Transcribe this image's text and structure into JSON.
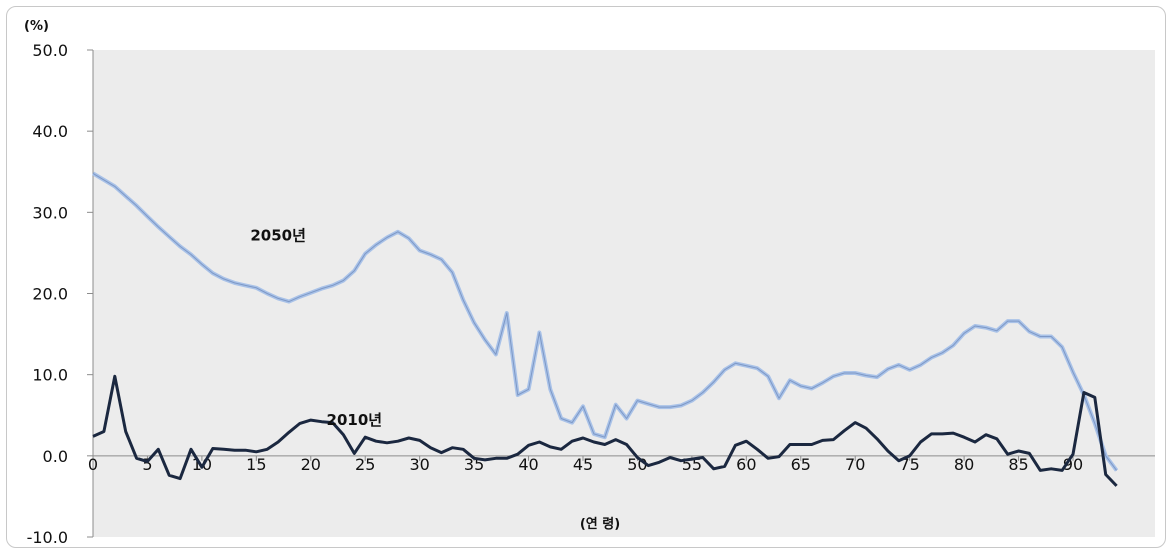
{
  "chart_data": {
    "type": "line",
    "unit_label": "(%)",
    "xlabel": "(연 령)",
    "ylim": [
      -10,
      50
    ],
    "xlim": [
      0,
      95
    ],
    "yticks": [
      50,
      40,
      30,
      20,
      10,
      0,
      -10
    ],
    "ytick_labels": [
      "50.0",
      "40.0",
      "30.0",
      "20.0",
      "10.0",
      "0.0",
      "-10.0"
    ],
    "xticks": [
      0,
      5,
      10,
      15,
      20,
      25,
      30,
      35,
      40,
      45,
      50,
      55,
      60,
      65,
      70,
      75,
      80,
      85,
      90
    ],
    "xtick_labels": [
      "0",
      "5",
      "10",
      "15",
      "20",
      "25",
      "30",
      "35",
      "40",
      "45",
      "50",
      "55",
      "60",
      "65",
      "70",
      "75",
      "80",
      "85",
      "90"
    ],
    "grid": false,
    "plot_background": "#ececec",
    "series": [
      {
        "name": "2050년",
        "color": "#a9c2e8",
        "x": [
          0,
          1,
          2,
          3,
          4,
          5,
          6,
          7,
          8,
          9,
          10,
          11,
          12,
          13,
          14,
          15,
          16,
          17,
          18,
          19,
          20,
          21,
          22,
          23,
          24,
          25,
          26,
          27,
          28,
          29,
          30,
          31,
          32,
          33,
          34,
          35,
          36,
          37,
          38,
          39,
          40,
          41,
          42,
          43,
          44,
          45,
          46,
          47,
          48,
          49,
          50,
          51,
          52,
          53,
          54,
          55,
          56,
          57,
          58,
          59,
          60,
          61,
          62,
          63,
          64,
          65,
          66,
          67,
          68,
          69,
          70,
          71,
          72,
          73,
          74,
          75,
          76,
          77,
          78,
          79,
          80,
          81,
          82,
          83,
          84,
          85,
          86,
          87,
          88,
          89,
          90,
          91,
          92,
          93,
          94
        ],
        "values": [
          34.8,
          34,
          33.2,
          32,
          30.8,
          29.5,
          28.2,
          27,
          25.8,
          24.8,
          23.6,
          22.5,
          21.8,
          21.3,
          21,
          20.7,
          20,
          19.4,
          19,
          19.6,
          20.1,
          20.6,
          21,
          21.6,
          22.8,
          24.9,
          26,
          26.9,
          27.6,
          26.8,
          25.3,
          24.8,
          24.2,
          22.6,
          19.2,
          16.4,
          14.3,
          12.5,
          17.6,
          7.5,
          8.2,
          15.2,
          8.2,
          4.6,
          4.1,
          6.1,
          2.7,
          2.3,
          6.3,
          4.6,
          6.8,
          6.4,
          6,
          6,
          6.2,
          6.8,
          7.8,
          9.1,
          10.6,
          11.4,
          11.1,
          10.8,
          9.8,
          7.1,
          9.3,
          8.6,
          8.3,
          9,
          9.8,
          10.2,
          10.2,
          9.9,
          9.7,
          10.7,
          11.2,
          10.6,
          11.2,
          12.1,
          12.7,
          13.6,
          15.1,
          16,
          15.8,
          15.4,
          16.6,
          16.6,
          15.3,
          14.7,
          14.7,
          13.4,
          10.3,
          7.5,
          4,
          0,
          -1.8
        ]
      },
      {
        "name": "2010년",
        "color": "#1b2840",
        "x": [
          0,
          1,
          2,
          3,
          4,
          5,
          6,
          7,
          8,
          9,
          10,
          11,
          12,
          13,
          14,
          15,
          16,
          17,
          18,
          19,
          20,
          21,
          22,
          23,
          24,
          25,
          26,
          27,
          28,
          29,
          30,
          31,
          32,
          33,
          34,
          35,
          36,
          37,
          38,
          39,
          40,
          41,
          42,
          43,
          44,
          45,
          46,
          47,
          48,
          49,
          50,
          51,
          52,
          53,
          54,
          55,
          56,
          57,
          58,
          59,
          60,
          61,
          62,
          63,
          64,
          65,
          66,
          67,
          68,
          69,
          70,
          71,
          72,
          73,
          74,
          75,
          76,
          77,
          78,
          79,
          80,
          81,
          82,
          83,
          84,
          85,
          86,
          87,
          88,
          89,
          90,
          91,
          92,
          93,
          94
        ],
        "values": [
          2.4,
          3,
          9.8,
          3,
          -0.3,
          -0.7,
          0.8,
          -2.4,
          -2.8,
          0.8,
          -1.4,
          0.9,
          0.8,
          0.7,
          0.7,
          0.5,
          0.8,
          1.7,
          2.9,
          4,
          4.4,
          4.2,
          4.1,
          2.6,
          0.3,
          2.3,
          1.8,
          1.6,
          1.8,
          2.2,
          1.9,
          1,
          0.4,
          1,
          0.8,
          -0.3,
          -0.5,
          -0.3,
          -0.3,
          0.2,
          1.3,
          1.7,
          1.1,
          0.8,
          1.8,
          2.2,
          1.7,
          1.4,
          2,
          1.4,
          -0.2,
          -1.2,
          -0.8,
          -0.2,
          -0.6,
          -0.4,
          -0.2,
          -1.6,
          -1.3,
          1.3,
          1.8,
          0.8,
          -0.3,
          -0.1,
          1.4,
          1.4,
          1.4,
          1.9,
          2,
          3.1,
          4.1,
          3.4,
          2.1,
          0.6,
          -0.6,
          0,
          1.7,
          2.7,
          2.7,
          2.8,
          2.3,
          1.7,
          2.6,
          2.1,
          0.2,
          0.6,
          0.3,
          -1.8,
          -1.6,
          -1.8,
          0.2,
          7.8,
          7.2,
          -2.3,
          -3.7
        ]
      }
    ],
    "annotations": [
      {
        "text": "2050년",
        "series": "2050년",
        "x": 17,
        "y": 26.5
      },
      {
        "text": "2010년",
        "series": "2010년",
        "x": 24,
        "y": 3.8
      }
    ]
  }
}
